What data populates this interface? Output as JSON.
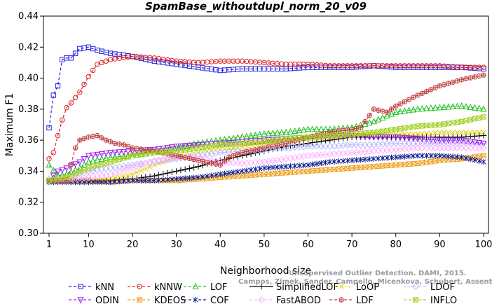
{
  "chart_data": {
    "type": "line",
    "title": "SpamBase_withoutdupl_norm_20_v09",
    "xlabel": "Neighborhood size",
    "ylabel": "Maximum F1",
    "xlim": [
      1,
      100
    ],
    "ylim": [
      0.3,
      0.44
    ],
    "xticks": [
      1,
      10,
      20,
      30,
      40,
      50,
      60,
      70,
      80,
      90,
      100
    ],
    "yticks": [
      0.3,
      0.32,
      0.34,
      0.36,
      0.38,
      0.4,
      0.42,
      0.44
    ],
    "ytick_labels": [
      "0.30",
      "0.32",
      "0.34",
      "0.36",
      "0.38",
      "0.40",
      "0.42",
      "0.44"
    ],
    "grid": false,
    "legend_position": "bottom",
    "series": [
      {
        "name": "kNN",
        "color": "#2020e0",
        "marker": "square",
        "line": "dashed",
        "points": [
          [
            1,
            0.368
          ],
          [
            2,
            0.389
          ],
          [
            3,
            0.395
          ],
          [
            4,
            0.412
          ],
          [
            5,
            0.413
          ],
          [
            6,
            0.413
          ],
          [
            8,
            0.419
          ],
          [
            10,
            0.42
          ],
          [
            12,
            0.418
          ],
          [
            15,
            0.416
          ],
          [
            20,
            0.414
          ],
          [
            25,
            0.411
          ],
          [
            30,
            0.409
          ],
          [
            35,
            0.407
          ],
          [
            40,
            0.405
          ],
          [
            45,
            0.406
          ],
          [
            50,
            0.406
          ],
          [
            55,
            0.406
          ],
          [
            60,
            0.407
          ],
          [
            65,
            0.407
          ],
          [
            70,
            0.407
          ],
          [
            75,
            0.408
          ],
          [
            80,
            0.407
          ],
          [
            85,
            0.407
          ],
          [
            90,
            0.407
          ],
          [
            95,
            0.407
          ],
          [
            100,
            0.406
          ]
        ]
      },
      {
        "name": "kNNW",
        "color": "#e02020",
        "marker": "circle",
        "line": "dashed",
        "points": [
          [
            1,
            0.348
          ],
          [
            2,
            0.352
          ],
          [
            3,
            0.363
          ],
          [
            4,
            0.373
          ],
          [
            5,
            0.381
          ],
          [
            6,
            0.384
          ],
          [
            8,
            0.391
          ],
          [
            10,
            0.401
          ],
          [
            12,
            0.409
          ],
          [
            15,
            0.412
          ],
          [
            20,
            0.414
          ],
          [
            25,
            0.413
          ],
          [
            30,
            0.411
          ],
          [
            35,
            0.41
          ],
          [
            40,
            0.411
          ],
          [
            45,
            0.411
          ],
          [
            50,
            0.41
          ],
          [
            55,
            0.409
          ],
          [
            60,
            0.409
          ],
          [
            65,
            0.408
          ],
          [
            70,
            0.408
          ],
          [
            75,
            0.408
          ],
          [
            80,
            0.408
          ],
          [
            85,
            0.408
          ],
          [
            90,
            0.408
          ],
          [
            95,
            0.407
          ],
          [
            100,
            0.407
          ]
        ]
      },
      {
        "name": "LOF",
        "color": "#20c020",
        "marker": "triangle",
        "line": "dashed",
        "points": [
          [
            1,
            0.344
          ],
          [
            3,
            0.337
          ],
          [
            5,
            0.338
          ],
          [
            8,
            0.342
          ],
          [
            10,
            0.346
          ],
          [
            15,
            0.349
          ],
          [
            20,
            0.35
          ],
          [
            25,
            0.352
          ],
          [
            30,
            0.355
          ],
          [
            35,
            0.358
          ],
          [
            40,
            0.36
          ],
          [
            45,
            0.362
          ],
          [
            50,
            0.364
          ],
          [
            55,
            0.365
          ],
          [
            60,
            0.367
          ],
          [
            65,
            0.367
          ],
          [
            70,
            0.368
          ],
          [
            75,
            0.372
          ],
          [
            80,
            0.378
          ],
          [
            85,
            0.38
          ],
          [
            90,
            0.381
          ],
          [
            95,
            0.382
          ],
          [
            100,
            0.38
          ]
        ]
      },
      {
        "name": "SimplifiedLOF",
        "color": "#000000",
        "marker": "plus",
        "line": "solid",
        "points": [
          [
            1,
            0.333
          ],
          [
            5,
            0.333
          ],
          [
            10,
            0.333
          ],
          [
            15,
            0.334
          ],
          [
            20,
            0.335
          ],
          [
            25,
            0.337
          ],
          [
            30,
            0.34
          ],
          [
            35,
            0.343
          ],
          [
            40,
            0.347
          ],
          [
            45,
            0.35
          ],
          [
            50,
            0.353
          ],
          [
            55,
            0.356
          ],
          [
            60,
            0.358
          ],
          [
            65,
            0.36
          ],
          [
            70,
            0.362
          ],
          [
            75,
            0.362
          ],
          [
            80,
            0.362
          ],
          [
            85,
            0.362
          ],
          [
            90,
            0.362
          ],
          [
            95,
            0.362
          ],
          [
            100,
            0.363
          ]
        ]
      },
      {
        "name": "LoOP",
        "color": "#e0d000",
        "marker": "x",
        "line": "dotted",
        "points": [
          [
            1,
            0.333
          ],
          [
            10,
            0.333
          ],
          [
            15,
            0.335
          ],
          [
            20,
            0.338
          ],
          [
            25,
            0.344
          ],
          [
            30,
            0.349
          ],
          [
            35,
            0.352
          ],
          [
            40,
            0.354
          ],
          [
            45,
            0.356
          ],
          [
            50,
            0.358
          ],
          [
            55,
            0.36
          ],
          [
            60,
            0.361
          ],
          [
            65,
            0.362
          ],
          [
            70,
            0.363
          ],
          [
            75,
            0.364
          ],
          [
            80,
            0.364
          ],
          [
            85,
            0.364
          ],
          [
            90,
            0.365
          ],
          [
            95,
            0.365
          ],
          [
            100,
            0.365
          ]
        ]
      },
      {
        "name": "LDOF",
        "color": "#b8b8ff",
        "marker": "diamond",
        "line": "dashed",
        "points": [
          [
            1,
            0.335
          ],
          [
            5,
            0.336
          ],
          [
            10,
            0.34
          ],
          [
            15,
            0.342
          ],
          [
            20,
            0.344
          ],
          [
            25,
            0.346
          ],
          [
            30,
            0.348
          ],
          [
            35,
            0.35
          ],
          [
            40,
            0.352
          ],
          [
            45,
            0.353
          ],
          [
            50,
            0.354
          ],
          [
            55,
            0.355
          ],
          [
            60,
            0.356
          ],
          [
            65,
            0.356
          ],
          [
            70,
            0.357
          ],
          [
            75,
            0.357
          ],
          [
            80,
            0.358
          ],
          [
            85,
            0.358
          ],
          [
            90,
            0.358
          ],
          [
            95,
            0.358
          ],
          [
            100,
            0.358
          ]
        ]
      },
      {
        "name": "ODIN",
        "color": "#a020f0",
        "marker": "triangle-down",
        "line": "dashed",
        "points": [
          [
            1,
            0.334
          ],
          [
            3,
            0.34
          ],
          [
            5,
            0.342
          ],
          [
            8,
            0.346
          ],
          [
            10,
            0.35
          ],
          [
            15,
            0.352
          ],
          [
            20,
            0.353
          ],
          [
            25,
            0.354
          ],
          [
            30,
            0.356
          ],
          [
            35,
            0.357
          ],
          [
            40,
            0.358
          ],
          [
            45,
            0.359
          ],
          [
            50,
            0.36
          ],
          [
            55,
            0.361
          ],
          [
            60,
            0.362
          ],
          [
            65,
            0.363
          ],
          [
            70,
            0.363
          ],
          [
            75,
            0.362
          ],
          [
            80,
            0.362
          ],
          [
            85,
            0.361
          ],
          [
            90,
            0.36
          ],
          [
            95,
            0.36
          ],
          [
            100,
            0.358
          ]
        ]
      },
      {
        "name": "KDEOS",
        "color": "#f0a020",
        "marker": "square-x",
        "line": "dashed",
        "points": [
          [
            1,
            0.334
          ],
          [
            10,
            0.334
          ],
          [
            15,
            0.333
          ],
          [
            20,
            0.334
          ],
          [
            25,
            0.334
          ],
          [
            30,
            0.334
          ],
          [
            35,
            0.335
          ],
          [
            40,
            0.336
          ],
          [
            45,
            0.337
          ],
          [
            50,
            0.338
          ],
          [
            55,
            0.339
          ],
          [
            60,
            0.34
          ],
          [
            65,
            0.341
          ],
          [
            70,
            0.342
          ],
          [
            75,
            0.343
          ],
          [
            80,
            0.344
          ],
          [
            85,
            0.345
          ],
          [
            90,
            0.347
          ],
          [
            95,
            0.348
          ],
          [
            100,
            0.35
          ]
        ]
      },
      {
        "name": "COF",
        "color": "#102090",
        "marker": "asterisk",
        "line": "dashed",
        "points": [
          [
            1,
            0.333
          ],
          [
            10,
            0.333
          ],
          [
            15,
            0.333
          ],
          [
            20,
            0.334
          ],
          [
            25,
            0.334
          ],
          [
            30,
            0.335
          ],
          [
            35,
            0.336
          ],
          [
            40,
            0.338
          ],
          [
            45,
            0.34
          ],
          [
            50,
            0.342
          ],
          [
            55,
            0.343
          ],
          [
            60,
            0.344
          ],
          [
            65,
            0.346
          ],
          [
            70,
            0.347
          ],
          [
            75,
            0.348
          ],
          [
            80,
            0.349
          ],
          [
            85,
            0.35
          ],
          [
            90,
            0.35
          ],
          [
            95,
            0.349
          ],
          [
            100,
            0.346
          ]
        ]
      },
      {
        "name": "FastABOD",
        "color": "#ffb0ff",
        "marker": "diamond",
        "line": "dashed",
        "points": [
          [
            1,
            0.334
          ],
          [
            10,
            0.336
          ],
          [
            15,
            0.338
          ],
          [
            20,
            0.342
          ],
          [
            25,
            0.347
          ],
          [
            30,
            0.349
          ],
          [
            35,
            0.348
          ],
          [
            40,
            0.346
          ],
          [
            45,
            0.345
          ],
          [
            50,
            0.346
          ],
          [
            55,
            0.348
          ],
          [
            60,
            0.35
          ],
          [
            65,
            0.351
          ],
          [
            70,
            0.352
          ],
          [
            75,
            0.353
          ],
          [
            80,
            0.354
          ],
          [
            85,
            0.355
          ],
          [
            90,
            0.355
          ],
          [
            95,
            0.355
          ],
          [
            100,
            0.355
          ]
        ]
      },
      {
        "name": "LDF",
        "color": "#c04040",
        "marker": "circle-plus",
        "line": "dashed",
        "points": [
          [
            1,
            0.334
          ],
          [
            5,
            0.334
          ],
          [
            7,
            0.355
          ],
          [
            8,
            0.36
          ],
          [
            10,
            0.362
          ],
          [
            12,
            0.363
          ],
          [
            14,
            0.36
          ],
          [
            16,
            0.358
          ],
          [
            18,
            0.357
          ],
          [
            20,
            0.355
          ],
          [
            25,
            0.353
          ],
          [
            30,
            0.35
          ],
          [
            35,
            0.347
          ],
          [
            40,
            0.344
          ],
          [
            42,
            0.349
          ],
          [
            45,
            0.352
          ],
          [
            50,
            0.355
          ],
          [
            55,
            0.358
          ],
          [
            60,
            0.362
          ],
          [
            65,
            0.365
          ],
          [
            70,
            0.367
          ],
          [
            72,
            0.368
          ],
          [
            75,
            0.38
          ],
          [
            78,
            0.378
          ],
          [
            80,
            0.382
          ],
          [
            85,
            0.389
          ],
          [
            90,
            0.395
          ],
          [
            95,
            0.399
          ],
          [
            100,
            0.402
          ]
        ]
      },
      {
        "name": "INFLO",
        "color": "#a0d020",
        "marker": "square-x",
        "line": "dashed",
        "points": [
          [
            1,
            0.334
          ],
          [
            5,
            0.336
          ],
          [
            10,
            0.342
          ],
          [
            15,
            0.346
          ],
          [
            20,
            0.35
          ],
          [
            25,
            0.352
          ],
          [
            30,
            0.353
          ],
          [
            35,
            0.355
          ],
          [
            40,
            0.357
          ],
          [
            45,
            0.358
          ],
          [
            50,
            0.359
          ],
          [
            55,
            0.361
          ],
          [
            60,
            0.362
          ],
          [
            65,
            0.363
          ],
          [
            70,
            0.364
          ],
          [
            75,
            0.365
          ],
          [
            80,
            0.367
          ],
          [
            85,
            0.369
          ],
          [
            90,
            0.37
          ],
          [
            95,
            0.372
          ],
          [
            100,
            0.375
          ]
        ]
      }
    ]
  },
  "credit_lines": [
    "Unsupervised Outlier Detection. DAMI, 2015.",
    "Campos, Zimek, Sander, Campello, Micenkova, Schubert, Assent, Houle"
  ]
}
